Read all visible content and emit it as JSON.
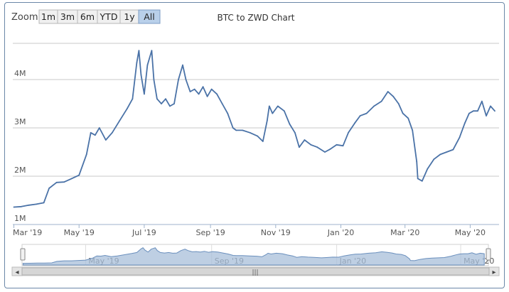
{
  "range_selector": {
    "zoom_label": "Zoom",
    "buttons": [
      "1m",
      "3m",
      "6m",
      "YTD",
      "1y",
      "All"
    ],
    "active": "All"
  },
  "chart_data": {
    "type": "line",
    "title": "BTC to ZWD Chart",
    "xlabel": "",
    "ylabel": "",
    "ylim": [
      1000000,
      4750000
    ],
    "x_ticks": [
      "Mar '19",
      "May '19",
      "Jul '19",
      "Sep '19",
      "Nov '19",
      "Jan '20",
      "Mar '20",
      "May '20"
    ],
    "y_ticks": [
      "1M",
      "2M",
      "3M",
      "4M"
    ],
    "grid": true,
    "legend": "none",
    "series": [
      {
        "x": [
          "2019-03-01",
          "2019-03-08",
          "2019-03-15",
          "2019-03-22",
          "2019-03-29",
          "2019-04-03",
          "2019-04-10",
          "2019-04-17",
          "2019-04-24",
          "2019-05-01",
          "2019-05-08",
          "2019-05-12",
          "2019-05-16",
          "2019-05-20",
          "2019-05-26",
          "2019-06-01",
          "2019-06-08",
          "2019-06-15",
          "2019-06-20",
          "2019-06-24",
          "2019-06-26",
          "2019-06-28",
          "2019-07-01",
          "2019-07-04",
          "2019-07-08",
          "2019-07-10",
          "2019-07-13",
          "2019-07-17",
          "2019-07-21",
          "2019-07-25",
          "2019-07-29",
          "2019-08-02",
          "2019-08-06",
          "2019-08-09",
          "2019-08-13",
          "2019-08-17",
          "2019-08-21",
          "2019-08-25",
          "2019-08-29",
          "2019-09-02",
          "2019-09-07",
          "2019-09-12",
          "2019-09-17",
          "2019-09-22",
          "2019-09-25",
          "2019-10-01",
          "2019-10-08",
          "2019-10-15",
          "2019-10-20",
          "2019-10-24",
          "2019-10-26",
          "2019-10-29",
          "2019-11-03",
          "2019-11-09",
          "2019-11-14",
          "2019-11-19",
          "2019-11-23",
          "2019-11-28",
          "2019-12-04",
          "2019-12-10",
          "2019-12-17",
          "2019-12-22",
          "2019-12-28",
          "2020-01-03",
          "2020-01-08",
          "2020-01-14",
          "2020-01-19",
          "2020-01-25",
          "2020-02-01",
          "2020-02-08",
          "2020-02-14",
          "2020-02-19",
          "2020-02-24",
          "2020-02-28",
          "2020-03-04",
          "2020-03-08",
          "2020-03-12",
          "2020-03-13",
          "2020-03-17",
          "2020-03-22",
          "2020-03-28",
          "2020-04-03",
          "2020-04-09",
          "2020-04-15",
          "2020-04-21",
          "2020-04-26",
          "2020-04-30",
          "2020-05-04",
          "2020-05-08",
          "2020-05-12",
          "2020-05-16",
          "2020-05-20",
          "2020-05-24"
        ],
        "values": [
          1360000,
          1370000,
          1400000,
          1420000,
          1450000,
          1750000,
          1870000,
          1880000,
          1950000,
          2020000,
          2450000,
          2900000,
          2850000,
          3000000,
          2750000,
          2900000,
          3150000,
          3400000,
          3600000,
          4350000,
          4600000,
          4100000,
          3700000,
          4300000,
          4600000,
          4000000,
          3600000,
          3500000,
          3600000,
          3450000,
          3500000,
          4000000,
          4300000,
          4000000,
          3750000,
          3800000,
          3700000,
          3850000,
          3650000,
          3800000,
          3700000,
          3500000,
          3300000,
          3000000,
          2950000,
          2950000,
          2900000,
          2830000,
          2720000,
          3150000,
          3450000,
          3300000,
          3450000,
          3350000,
          3080000,
          2900000,
          2600000,
          2750000,
          2650000,
          2600000,
          2500000,
          2560000,
          2650000,
          2630000,
          2900000,
          3100000,
          3250000,
          3300000,
          3450000,
          3550000,
          3750000,
          3650000,
          3500000,
          3300000,
          3200000,
          2950000,
          2300000,
          1950000,
          1900000,
          2150000,
          2350000,
          2450000,
          2500000,
          2550000,
          2800000,
          3100000,
          3300000,
          3350000,
          3350000,
          3550000,
          3250000,
          3450000,
          3350000
        ]
      }
    ]
  },
  "navigator": {
    "x_ticks": [
      "May '19",
      "Sep '19",
      "Jan '20",
      "May '20"
    ],
    "scroll_left_arrow": "◂",
    "scroll_right_arrow": "▸",
    "scroll_grip": "|||"
  }
}
